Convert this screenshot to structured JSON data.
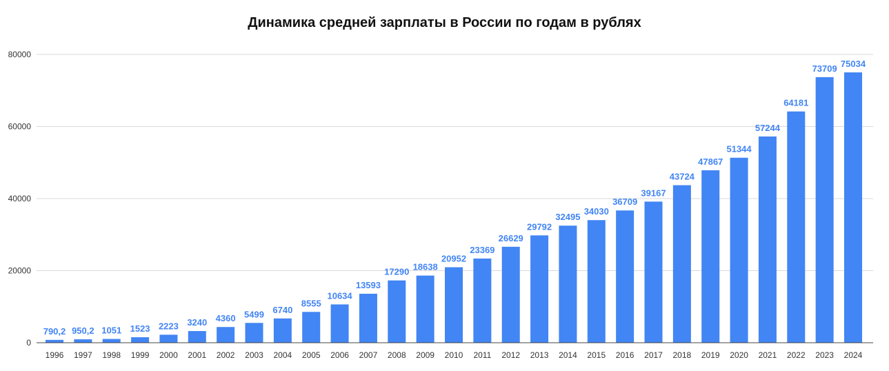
{
  "chart_data": {
    "type": "bar",
    "title": "Динамика средней зарплаты в России по годам в рублях",
    "xlabel": "",
    "ylabel": "",
    "ylim": [
      0,
      80000
    ],
    "yticks": [
      "0",
      "20000",
      "40000",
      "60000",
      "80000"
    ],
    "ytick_values": [
      0,
      20000,
      40000,
      60000,
      80000
    ],
    "grid": true,
    "legend": "none",
    "bar_color": "#4285F4",
    "label_color": "#4285F4",
    "categories": [
      "1996",
      "1997",
      "1998",
      "1999",
      "2000",
      "2001",
      "2002",
      "2003",
      "2004",
      "2005",
      "2006",
      "2007",
      "2008",
      "2009",
      "2010",
      "2011",
      "2012",
      "2013",
      "2014",
      "2015",
      "2016",
      "2017",
      "2018",
      "2019",
      "2020",
      "2021",
      "2022",
      "2023",
      "2024"
    ],
    "values": [
      790.2,
      950.2,
      1051,
      1523,
      2223,
      3240,
      4360,
      5499,
      6740,
      8555,
      10634,
      13593,
      17290,
      18638,
      20952,
      23369,
      26629,
      29792,
      32495,
      34030,
      36709,
      39167,
      43724,
      47867,
      51344,
      57244,
      64181,
      73709,
      75034
    ],
    "data_labels": [
      "790,2",
      "950,2",
      "1051",
      "1523",
      "2223",
      "3240",
      "4360",
      "5499",
      "6740",
      "8555",
      "10634",
      "13593",
      "17290",
      "18638",
      "20952",
      "23369",
      "26629",
      "29792",
      "32495",
      "34030",
      "36709",
      "39167",
      "43724",
      "47867",
      "51344",
      "57244",
      "64181",
      "73709",
      "75034"
    ]
  }
}
